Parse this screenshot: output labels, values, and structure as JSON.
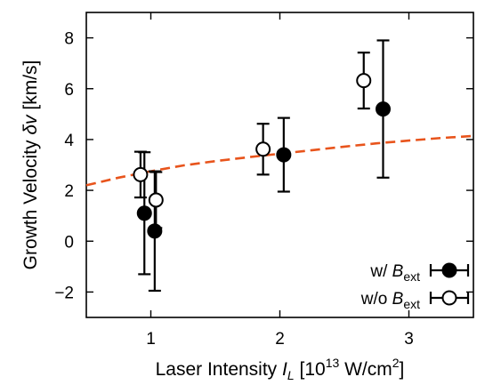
{
  "chart_data": {
    "type": "scatter",
    "xlabel": {
      "main": "Laser Intensity ",
      "var": "I",
      "sub": "L",
      "bracket_open": " [10",
      "exp": "13",
      "unit": " W/cm",
      "unit_exp": "2",
      "bracket_close": "]"
    },
    "ylabel": {
      "main": "Growth Velocity ",
      "var": "δv",
      "unit": " [km/s]"
    },
    "xlim": [
      0.5,
      3.5
    ],
    "ylim": [
      -3,
      9
    ],
    "xticks": [
      1,
      2,
      3
    ],
    "xtick_labels": [
      "1",
      "2",
      "3"
    ],
    "yticks": [
      -2,
      0,
      2,
      4,
      6,
      8
    ],
    "ytick_labels": [
      "−2",
      "0",
      "2",
      "4",
      "6",
      "8"
    ],
    "grid": false,
    "legend_position": "bottom-right",
    "series": [
      {
        "name": "w/ B_ext",
        "legend_prefix": "w/ ",
        "legend_var": "B",
        "legend_sub": "ext",
        "marker": "filled-circle",
        "color": "#000000",
        "points": [
          {
            "x": 0.95,
            "y": 1.1,
            "ylow": -1.3,
            "yhigh": 3.5
          },
          {
            "x": 1.03,
            "y": 0.4,
            "ylow": -1.95,
            "yhigh": 2.75
          },
          {
            "x": 2.03,
            "y": 3.4,
            "ylow": 1.95,
            "yhigh": 4.85
          },
          {
            "x": 2.8,
            "y": 5.2,
            "ylow": 2.5,
            "yhigh": 7.9
          }
        ]
      },
      {
        "name": "w/o B_ext",
        "legend_prefix": "w/o ",
        "legend_var": "B",
        "legend_sub": "ext",
        "marker": "open-circle",
        "color": "#000000",
        "points": [
          {
            "x": 0.92,
            "y": 2.62,
            "ylow": 1.72,
            "yhigh": 3.52
          },
          {
            "x": 1.04,
            "y": 1.62,
            "ylow": 0.52,
            "yhigh": 2.72
          },
          {
            "x": 1.87,
            "y": 3.62,
            "ylow": 2.62,
            "yhigh": 4.62
          },
          {
            "x": 2.65,
            "y": 6.32,
            "ylow": 5.22,
            "yhigh": 7.42
          }
        ]
      },
      {
        "name": "",
        "marker": "dashed-line",
        "color": "#e8541c",
        "points": [
          {
            "x": 0.5,
            "y": 2.2
          },
          {
            "x": 0.75,
            "y": 2.5
          },
          {
            "x": 1.0,
            "y": 2.75
          },
          {
            "x": 1.25,
            "y": 2.98
          },
          {
            "x": 1.5,
            "y": 3.15
          },
          {
            "x": 1.75,
            "y": 3.3
          },
          {
            "x": 2.0,
            "y": 3.44
          },
          {
            "x": 2.25,
            "y": 3.58
          },
          {
            "x": 2.5,
            "y": 3.72
          },
          {
            "x": 2.75,
            "y": 3.85
          },
          {
            "x": 3.0,
            "y": 3.96
          },
          {
            "x": 3.25,
            "y": 4.06
          },
          {
            "x": 3.5,
            "y": 4.14
          }
        ]
      }
    ]
  }
}
